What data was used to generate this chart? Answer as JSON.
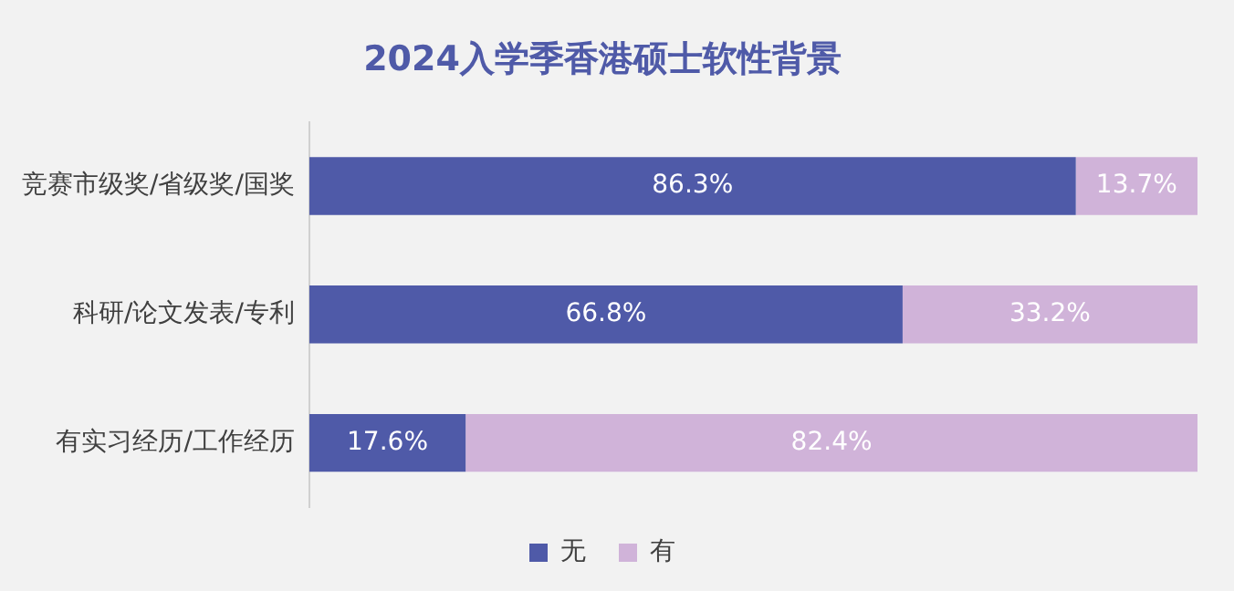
{
  "chart_data": {
    "type": "bar",
    "title": "2024入学季香港硕士软性背景",
    "orientation": "horizontal",
    "stacked": true,
    "categories": [
      "竞赛市级奖/省级奖/国奖",
      "科研/论文发表/专利",
      "有实习经历/工作经历"
    ],
    "series": [
      {
        "name": "无",
        "color": "#4f5aa8",
        "values": [
          86.3,
          66.8,
          17.6
        ],
        "value_labels": [
          "86.3%",
          "66.8%",
          "17.6%"
        ]
      },
      {
        "name": "有",
        "color": "#d0b3d9",
        "values": [
          13.7,
          33.2,
          82.4
        ],
        "value_labels": [
          "13.7%",
          "33.2%",
          "82.4%"
        ]
      }
    ],
    "xlim": [
      0,
      100
    ],
    "tick_labels": "y",
    "grid": false,
    "legend": "bottom"
  }
}
